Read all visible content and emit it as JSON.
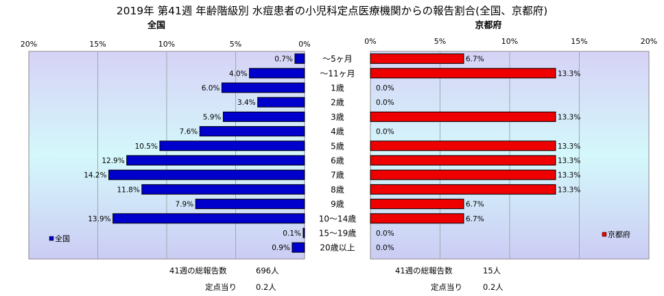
{
  "title": "2019年 第41週 年齢階級別 水痘患者の小児科定点医療機関からの報告割合(全国、京都府)",
  "chart_data": [
    {
      "type": "bar",
      "orientation": "horizontal",
      "direction": "reversed",
      "panel_title": "全国",
      "legend": "全国",
      "legend_position": "bottom-left",
      "color": "#0000CC",
      "xlim": [
        0,
        20
      ],
      "ticks": [
        "20%",
        "15%",
        "10%",
        "5%",
        "0%"
      ],
      "tick_values": [
        20,
        15,
        10,
        5,
        0
      ],
      "grid": true,
      "values": [
        0.7,
        4.0,
        6.0,
        3.4,
        5.9,
        7.6,
        10.5,
        12.9,
        14.2,
        11.8,
        7.9,
        13.9,
        0.1,
        0.9
      ],
      "labels": [
        "0.7%",
        "4.0%",
        "6.0%",
        "3.4%",
        "5.9%",
        "7.6%",
        "10.5%",
        "12.9%",
        "14.2%",
        "11.8%",
        "7.9%",
        "13.9%",
        "0.1%",
        "0.9%"
      ],
      "footer": {
        "total_label": "41週の総報告数",
        "total_value": "696人",
        "per_label": "定点当り",
        "per_value": "0.2人"
      }
    },
    {
      "type": "bar",
      "orientation": "horizontal",
      "panel_title": "京都府",
      "legend": "京都府",
      "legend_position": "bottom-right",
      "color": "#EE0000",
      "xlim": [
        0,
        20
      ],
      "ticks": [
        "0%",
        "5%",
        "10%",
        "15%",
        "20%"
      ],
      "tick_values": [
        0,
        5,
        10,
        15,
        20
      ],
      "grid": true,
      "values": [
        6.7,
        13.3,
        0.0,
        0.0,
        13.3,
        0.0,
        13.3,
        13.3,
        13.3,
        13.3,
        6.7,
        6.7,
        0.0,
        0.0
      ],
      "labels": [
        "6.7%",
        "13.3%",
        "0.0%",
        "0.0%",
        "13.3%",
        "0.0%",
        "13.3%",
        "13.3%",
        "13.3%",
        "13.3%",
        "6.7%",
        "6.7%",
        "0.0%",
        "0.0%"
      ],
      "footer": {
        "total_label": "41週の総報告数",
        "total_value": "15人",
        "per_label": "定点当り",
        "per_value": "0.2人"
      }
    }
  ],
  "categories": [
    "～5ヶ月",
    "～11ヶ月",
    "1歳",
    "2歳",
    "3歳",
    "4歳",
    "5歳",
    "6歳",
    "7歳",
    "8歳",
    "9歳",
    "10～14歳",
    "15～19歳",
    "20歳以上"
  ]
}
